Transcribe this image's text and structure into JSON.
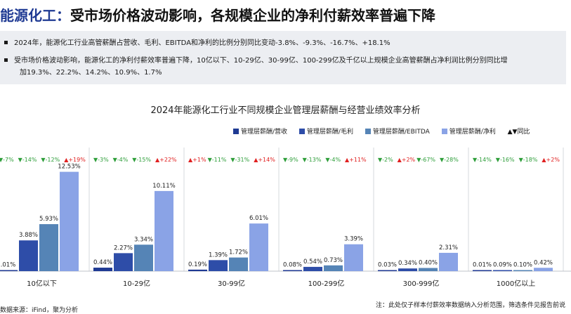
{
  "header": {
    "brand": "能源化工：",
    "rest": "受市场价格波动影响，各规模企业的净利付薪效率普遍下降"
  },
  "summary": {
    "bullets": [
      "2024年，能源化工行业高管薪酬占营收、毛利、EBITDA和净利的比例分别同比变动-3.8%、-9.3%、-16.7%、+18.1%",
      "受市场价格波动影响，能源化工的净利付薪效率普遍下降，10亿以下、10-29亿、30-99亿、100-299亿及千亿以上规模企业高管薪酬占净利润比例分别同比增",
      "加19.3%、22.2%、14.2%、10.9%、1.7%"
    ]
  },
  "chart_data": {
    "type": "bar",
    "title": "2024年能源化工行业不同规模企业管理层薪酬与经营业绩效率分析",
    "legend_change": "▲▼同比",
    "categories": [
      "10亿以下",
      "10-29亿",
      "30-99亿",
      "100-299亿",
      "300-999亿",
      "1000亿以上"
    ],
    "series": [
      {
        "name": "管理层薪酬/营收",
        "color": "#1f3a93",
        "values": [
          0.01,
          0.44,
          0.19,
          0.08,
          0.03,
          0.01
        ],
        "labels": [
          ".01%",
          "0.44%",
          "0.19%",
          "0.08%",
          "0.03%",
          "0.01%"
        ]
      },
      {
        "name": "管理层薪酬/毛利",
        "color": "#2e4da8",
        "values": [
          3.88,
          2.27,
          1.39,
          0.54,
          0.34,
          0.09
        ],
        "labels": [
          "3.88%",
          "2.27%",
          "1.39%",
          "0.54%",
          "0.34%",
          "0.09%"
        ]
      },
      {
        "name": "管理层薪酬/EBITDA",
        "color": "#5584b6",
        "values": [
          5.93,
          3.34,
          1.72,
          0.73,
          0.4,
          0.1
        ],
        "labels": [
          "5.93%",
          "3.34%",
          "1.72%",
          "0.73%",
          "0.40%",
          "0.10%"
        ]
      },
      {
        "name": "管理层薪酬/净利",
        "color": "#8aa3e6",
        "values": [
          12.53,
          10.11,
          6.01,
          3.39,
          2.31,
          0.42
        ],
        "labels": [
          "12.53%",
          "10.11%",
          "6.01%",
          "3.39%",
          "2.31%",
          "0.42%"
        ]
      }
    ],
    "changes": [
      [
        {
          "dir": "down",
          "text": "-7%"
        },
        {
          "dir": "down",
          "text": "-14%"
        },
        {
          "dir": "down",
          "text": "-12%"
        },
        {
          "dir": "up",
          "text": "+19%"
        }
      ],
      [
        {
          "dir": "down",
          "text": "-3%"
        },
        {
          "dir": "down",
          "text": "-4%"
        },
        {
          "dir": "down",
          "text": "-15%"
        },
        {
          "dir": "up",
          "text": "+22%"
        }
      ],
      [
        {
          "dir": "up",
          "text": "+1%"
        },
        {
          "dir": "down",
          "text": "-11%"
        },
        {
          "dir": "down",
          "text": "-31%"
        },
        {
          "dir": "up",
          "text": "+14%"
        }
      ],
      [
        {
          "dir": "down",
          "text": "-9%"
        },
        {
          "dir": "down",
          "text": "-13%"
        },
        {
          "dir": "down",
          "text": "-4%"
        },
        {
          "dir": "up",
          "text": "+11%"
        }
      ],
      [
        {
          "dir": "down",
          "text": "-2%"
        },
        {
          "dir": "up",
          "text": "+2%"
        },
        {
          "dir": "down",
          "text": "-67%"
        },
        {
          "dir": "down",
          "text": "-28%"
        }
      ],
      [
        {
          "dir": "down",
          "text": "-14%"
        },
        {
          "dir": "down",
          "text": "-16%"
        },
        {
          "dir": "down",
          "text": "-18%"
        },
        {
          "dir": "up",
          "text": "+2%"
        }
      ]
    ],
    "colors": {
      "up": "#e02020",
      "down": "#2e9e3a"
    },
    "ylim": [
      0,
      14
    ],
    "grid": false
  },
  "footer": {
    "note": "注：此处仅子样本付薪效率数据纳入分析范围，筛选条件见报告前说",
    "source": "数据来源：iFind，聚为分析"
  }
}
